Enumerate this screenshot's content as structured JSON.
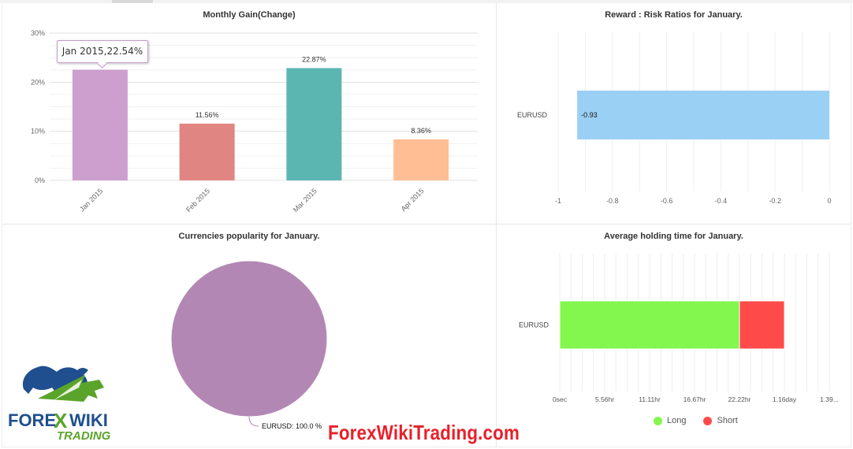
{
  "colors": {
    "accent_purple": "#cc9fce",
    "red": "#e08581",
    "teal": "#5bb6b2",
    "peach": "#ffbe94",
    "blue": "#9bd0f5",
    "pie": "#b387b4",
    "long_green": "#83f74e",
    "short_red": "#ff4a4a",
    "watermark_red": "#e8202a",
    "logo_blue": "#1f4f8f",
    "logo_green": "#5aa42b"
  },
  "tooltip": "Jan 2015,22.54%",
  "watermark": "ForexWikiTrading.com",
  "logo": {
    "line1_left": "FORE",
    "line1_x": "X",
    "line1_right": "WIKI",
    "line2": "TRADING"
  },
  "chart_data": [
    {
      "id": "monthly-gain",
      "type": "bar",
      "title": "Monthly Gain(Change)",
      "categories": [
        "Jan 2015",
        "Feb 2015",
        "Mar 2015",
        "Apr 2015"
      ],
      "values": [
        22.54,
        11.56,
        22.87,
        8.36
      ],
      "data_labels": [
        "",
        "11.56%",
        "22.87%",
        "8.36%"
      ],
      "bar_colors": [
        "#cc9fce",
        "#e08581",
        "#5bb6b2",
        "#ffbe94"
      ],
      "ylim": [
        0,
        30
      ],
      "yticks": [
        "0%",
        "10%",
        "20%",
        "30%"
      ],
      "ytick_values": [
        0,
        10,
        20,
        30
      ],
      "grid": true
    },
    {
      "id": "reward-risk",
      "type": "bar",
      "orientation": "horizontal",
      "title": "Reward : Risk Ratios for January.",
      "categories": [
        "EURUSD"
      ],
      "values": [
        -0.93
      ],
      "data_labels": [
        "-0.93"
      ],
      "xlim": [
        -1,
        0
      ],
      "xticks": [
        "-1",
        "-0.8",
        "-0.6",
        "-0.4",
        "-0.2",
        "0"
      ],
      "xtick_values": [
        -1,
        -0.8,
        -0.6,
        -0.4,
        -0.2,
        0
      ],
      "grid": true
    },
    {
      "id": "currencies-popularity",
      "type": "pie",
      "title": "Currencies popularity for January.",
      "slices": [
        {
          "label": "EURUSD",
          "value": 100.0
        }
      ],
      "data_labels": [
        "EURUSD: 100.0 %"
      ]
    },
    {
      "id": "average-holding-time",
      "type": "bar",
      "orientation": "horizontal",
      "stacked": true,
      "title": "Average holding time for January.",
      "categories": [
        "EURUSD"
      ],
      "unit": "seconds",
      "series": [
        {
          "name": "Long",
          "values": [
            80000
          ]
        },
        {
          "name": "Short",
          "values": [
            20000
          ]
        }
      ],
      "xlim": [
        0,
        120000
      ],
      "xticks": [
        "0sec",
        "5.56hr",
        "11.11hr",
        "16.67hr",
        "22.22hr",
        "1.16day",
        "1.39..."
      ],
      "xtick_values": [
        0,
        20000,
        40000,
        60000,
        80000,
        100000,
        120000
      ],
      "legend_position": "bottom",
      "grid": true
    }
  ]
}
